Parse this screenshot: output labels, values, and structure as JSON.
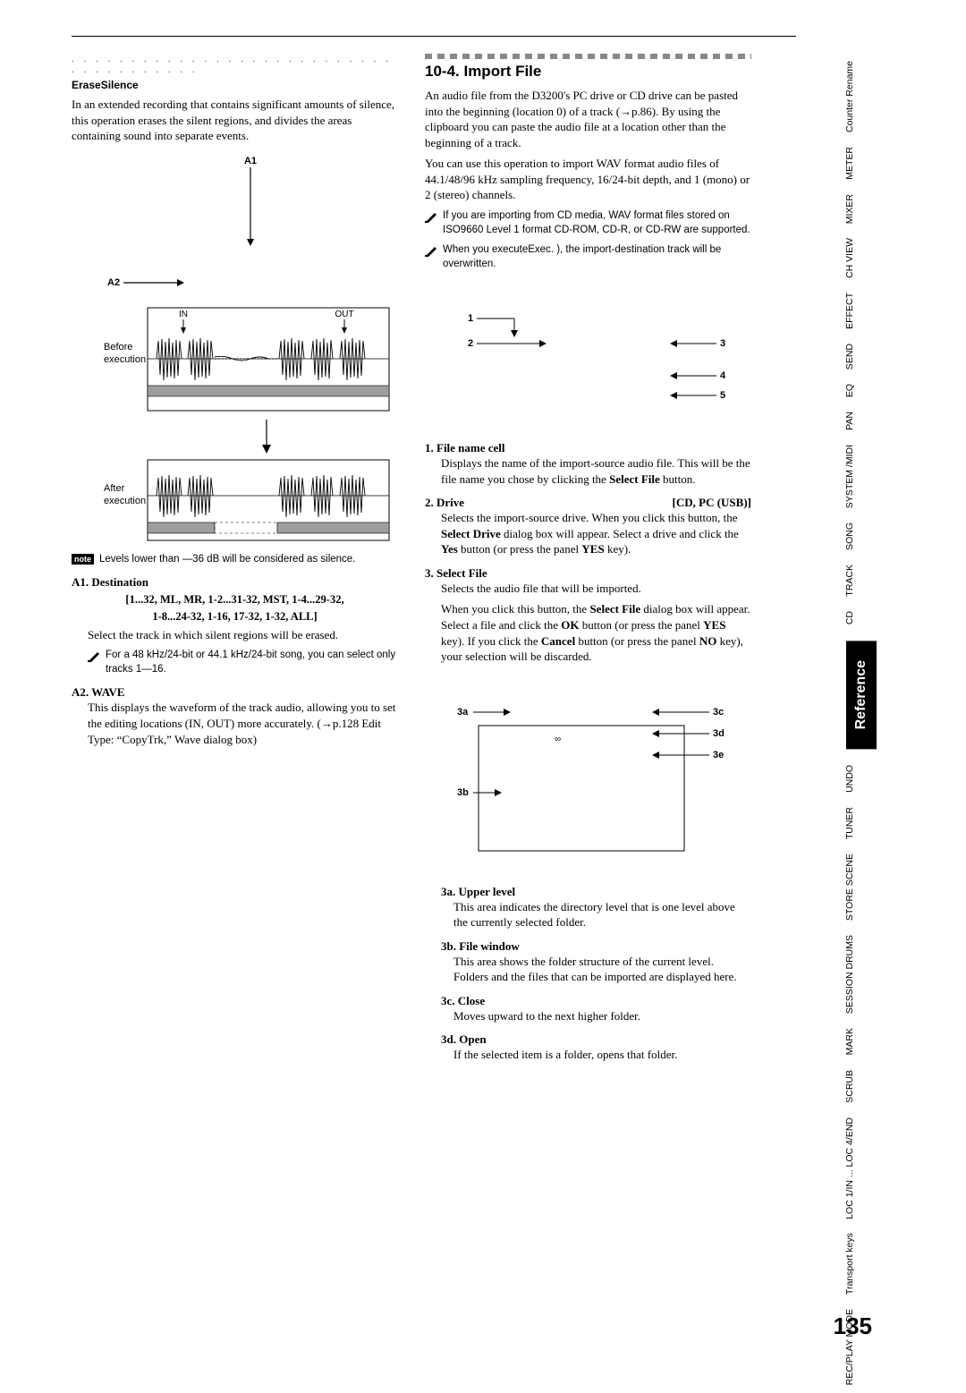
{
  "page_number": "135",
  "left": {
    "dotted": ". . . . . . . . . . . . . . . . . . . . . . . . . . . . . . . . . . . . . .",
    "erase_title": "EraseSilence",
    "erase_body": "In an extended recording that contains significant amounts of silence, this operation erases the silent regions, and divides the areas containing sound into separate events.",
    "fig": {
      "a1": "A1",
      "a2": "A2",
      "in": "IN",
      "out": "OUT",
      "before": "Before execution",
      "after": "After execution"
    },
    "note1": "Levels lower than —36 dB will be considered as silence.",
    "a1_heading": "A1. Destination",
    "range1": "[1...32, ML, MR, 1-2...31-32, MST, 1-4...29-32,",
    "range2": "1-8...24-32, 1-16, 17-32, 1-32, ALL]",
    "a1_body": "Select the track in which silent regions will be erased.",
    "warn1": "For a 48 kHz/24-bit or 44.1 kHz/24-bit song, you can select only tracks 1—16.",
    "a2_heading": "A2. WAVE",
    "a2_body": "This displays the waveform of the track audio, allowing you to set the editing locations (IN, OUT) more accurately. (→p.128 Edit Type: “CopyTrk,” Wave dialog box)"
  },
  "right": {
    "title": "10-4. Import File",
    "p1": "An audio file from the D3200's PC drive or CD drive can be pasted into the beginning (location 0) of a track (→p.86). By using the clipboard you can paste the audio file at a location other than the beginning of a track.",
    "p2": "You can use this operation to import WAV format audio files of 44.1/48/96 kHz sampling frequency, 16/24-bit depth, and 1 (mono) or 2 (stereo) channels.",
    "warn_cd": "If you are importing from CD media, WAV format files stored on ISO9660 Level 1 format CD-ROM, CD-R, or CD-RW are supported.",
    "warn_exec": "When you executeExec. ), the import-destination track will be overwritten.",
    "fig2": {
      "l1": "1",
      "l2": "2",
      "l3": "3",
      "l4": "4",
      "l5": "5"
    },
    "item1_h": "1.  File name cell",
    "item1_b": "Displays the name of the import-source audio file. This will be the file name you chose by clicking the Select File button.",
    "item2_h": "2.  Drive",
    "item2_opt": "[CD, PC (USB)]",
    "item2_b": "Selects the import-source drive. When you click this button, the Select Drive dialog box will appear. Select a drive and click the Yes button (or press the panel YES key).",
    "item3_h": "3.  Select File",
    "item3_b1": "Selects the audio file that will be imported.",
    "item3_b2": "When you click this button, the Select File dialog box will appear. Select a file and click the OK button (or press the panel YES key). If you click the Cancel button (or press the panel NO key), your selection will be discarded.",
    "fig3": {
      "a": "3a",
      "b": "3b",
      "c": "3c",
      "d": "3d",
      "e": "3e"
    },
    "sub3a_h": "3a. Upper level",
    "sub3a_b": "This area indicates the directory level that is one level above the currently selected folder.",
    "sub3b_h": "3b. File window",
    "sub3b_b": "This area shows the folder structure of the current level. Folders and the files that can be imported are displayed here.",
    "sub3c_h": "3c. Close",
    "sub3c_b": "Moves upward to the next higher folder.",
    "sub3d_h": "3d. Open",
    "sub3d_b": "If the selected item is a folder, opens that folder."
  },
  "tabs_upper": [
    "Counter Rename",
    "METER",
    "MIXER",
    "CH VIEW",
    "EFFECT",
    "SEND",
    "EQ",
    "PAN",
    "SYSTEM /MIDI",
    "SONG",
    "TRACK",
    "CD"
  ],
  "tab_reference": "Reference",
  "tabs_lower": [
    "UNDO",
    "TUNER",
    "STORE SCENE",
    "SESSION DRUMS",
    "MARK",
    "SCRUB",
    "LOC 1/IN ... LOC 4/END",
    "Transport keys",
    "REC/PLAY MODE"
  ],
  "colors": {
    "text": "#000000",
    "bg": "#ffffff",
    "gray_bar": "#9e9e9e",
    "fig_line": "#000000"
  }
}
